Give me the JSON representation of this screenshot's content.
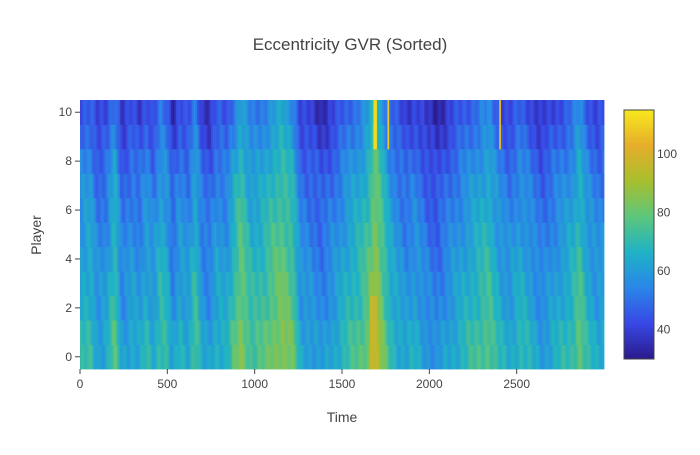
{
  "chart_data": {
    "type": "heatmap",
    "title": "Eccentricity GVR (Sorted)",
    "xlabel": "Time",
    "ylabel": "Player",
    "x_range": [
      0,
      3000
    ],
    "y_range": [
      -0.5,
      10.5
    ],
    "x_ticks": [
      0,
      500,
      1000,
      1500,
      2000,
      2500
    ],
    "y_ticks": [
      0,
      2,
      4,
      6,
      8,
      10
    ],
    "rows": 11,
    "color_range": [
      30,
      115
    ],
    "colorbar_ticks": [
      40,
      60,
      80,
      100
    ],
    "colorscale": [
      "#2b1a8c",
      "#3848e6",
      "#2a86e8",
      "#1fb2c6",
      "#5cc67c",
      "#a8bf2e",
      "#e6ae2a",
      "#f6e81d"
    ],
    "column_profile": [
      {
        "x": 0,
        "v": 58
      },
      {
        "x": 60,
        "v": 62
      },
      {
        "x": 100,
        "v": 52
      },
      {
        "x": 150,
        "v": 54
      },
      {
        "x": 200,
        "v": 68
      },
      {
        "x": 240,
        "v": 50
      },
      {
        "x": 300,
        "v": 56
      },
      {
        "x": 340,
        "v": 52
      },
      {
        "x": 380,
        "v": 60
      },
      {
        "x": 420,
        "v": 54
      },
      {
        "x": 460,
        "v": 64
      },
      {
        "x": 500,
        "v": 60
      },
      {
        "x": 530,
        "v": 48
      },
      {
        "x": 570,
        "v": 58
      },
      {
        "x": 620,
        "v": 54
      },
      {
        "x": 660,
        "v": 66
      },
      {
        "x": 700,
        "v": 52
      },
      {
        "x": 740,
        "v": 50
      },
      {
        "x": 780,
        "v": 58
      },
      {
        "x": 840,
        "v": 56
      },
      {
        "x": 880,
        "v": 66
      },
      {
        "x": 920,
        "v": 76
      },
      {
        "x": 980,
        "v": 64
      },
      {
        "x": 1040,
        "v": 66
      },
      {
        "x": 1100,
        "v": 72
      },
      {
        "x": 1160,
        "v": 76
      },
      {
        "x": 1220,
        "v": 70
      },
      {
        "x": 1260,
        "v": 54
      },
      {
        "x": 1320,
        "v": 52
      },
      {
        "x": 1380,
        "v": 48
      },
      {
        "x": 1430,
        "v": 52
      },
      {
        "x": 1480,
        "v": 56
      },
      {
        "x": 1540,
        "v": 62
      },
      {
        "x": 1600,
        "v": 66
      },
      {
        "x": 1650,
        "v": 72
      },
      {
        "x": 1690,
        "v": 84
      },
      {
        "x": 1730,
        "v": 74
      },
      {
        "x": 1770,
        "v": 62
      },
      {
        "x": 1820,
        "v": 56
      },
      {
        "x": 1870,
        "v": 52
      },
      {
        "x": 1920,
        "v": 56
      },
      {
        "x": 1980,
        "v": 50
      },
      {
        "x": 2040,
        "v": 46
      },
      {
        "x": 2100,
        "v": 52
      },
      {
        "x": 2160,
        "v": 56
      },
      {
        "x": 2220,
        "v": 60
      },
      {
        "x": 2280,
        "v": 64
      },
      {
        "x": 2340,
        "v": 68
      },
      {
        "x": 2400,
        "v": 58
      },
      {
        "x": 2460,
        "v": 54
      },
      {
        "x": 2520,
        "v": 60
      },
      {
        "x": 2580,
        "v": 56
      },
      {
        "x": 2640,
        "v": 50
      },
      {
        "x": 2700,
        "v": 54
      },
      {
        "x": 2760,
        "v": 58
      },
      {
        "x": 2820,
        "v": 62
      },
      {
        "x": 2860,
        "v": 70
      },
      {
        "x": 2900,
        "v": 60
      },
      {
        "x": 2960,
        "v": 54
      },
      {
        "x": 3000,
        "v": 56
      }
    ],
    "row_offsets": [
      10,
      9,
      6,
      5,
      3,
      1,
      -1,
      -3,
      -6,
      -10,
      -13
    ],
    "highlights": [
      {
        "x0": 1680,
        "x1": 1695,
        "rows_from": 9,
        "rows_to": 10,
        "v": 112
      },
      {
        "x0": 1760,
        "x1": 1772,
        "rows_from": 9,
        "rows_to": 10,
        "v": 108
      },
      {
        "x0": 2400,
        "x1": 2408,
        "rows_from": 9,
        "rows_to": 10,
        "v": 106
      },
      {
        "x0": 1660,
        "x1": 1700,
        "rows_from": 0,
        "rows_to": 2,
        "v": 96
      }
    ]
  }
}
